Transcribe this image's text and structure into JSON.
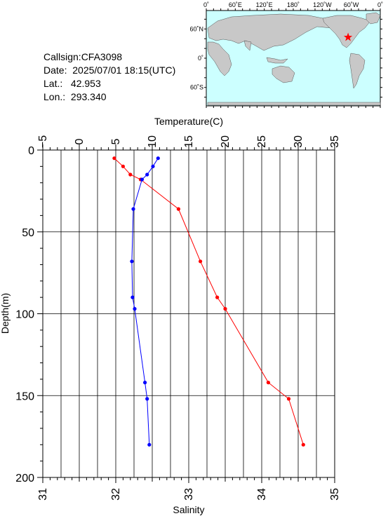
{
  "station": {
    "callsign": "Callsign:CFA3098",
    "date": "Date:  2025/07/01 18:15(UTC)",
    "lat": "Lat.:   42.953",
    "lon": "Lon.:  293.340"
  },
  "map": {
    "top_labels": [
      "0˚",
      "60˚E",
      "120˚E",
      "180˚",
      "120˚W",
      "60˚W",
      "0˚"
    ],
    "left_labels": [
      "60˚N",
      "0˚",
      "60˚S"
    ],
    "ocean_color": "#ccffff",
    "land_color": "#c8c8c8",
    "marker_color": "#ff0000",
    "marker_lon": 293.34,
    "marker_lat": 42.953
  },
  "chart_data": {
    "type": "line",
    "ylabel": "Depth(m)",
    "y_ticks": [
      "0",
      "50",
      "100",
      "150",
      "200"
    ],
    "ylim": [
      0,
      200
    ],
    "y_inverted": true,
    "grid": true,
    "top_axis": {
      "label": "Temperature(C)",
      "ticks": [
        "−5",
        "0",
        "5",
        "10",
        "15",
        "20",
        "25",
        "30",
        "35"
      ],
      "lim": [
        -5,
        35
      ]
    },
    "bottom_axis": {
      "label": "Salinity",
      "ticks": [
        "31",
        "32",
        "33",
        "34",
        "35"
      ],
      "lim": [
        31,
        35
      ]
    },
    "series": [
      {
        "color": "#ff0000",
        "axis": "top",
        "points": [
          [
            4.8,
            5
          ],
          [
            6.0,
            10
          ],
          [
            7.0,
            15
          ],
          [
            8.4,
            18
          ],
          [
            13.6,
            36
          ],
          [
            16.6,
            68
          ],
          [
            18.9,
            90
          ],
          [
            20.0,
            97
          ],
          [
            25.9,
            142
          ],
          [
            28.7,
            152
          ],
          [
            30.7,
            180
          ]
        ]
      },
      {
        "color": "#0000ff",
        "axis": "bottom",
        "points": [
          [
            32.58,
            5
          ],
          [
            32.51,
            10
          ],
          [
            32.43,
            15
          ],
          [
            32.36,
            18
          ],
          [
            32.24,
            36
          ],
          [
            32.22,
            68
          ],
          [
            32.23,
            90
          ],
          [
            32.26,
            97
          ],
          [
            32.4,
            142
          ],
          [
            32.43,
            152
          ],
          [
            32.46,
            180
          ]
        ]
      }
    ]
  }
}
